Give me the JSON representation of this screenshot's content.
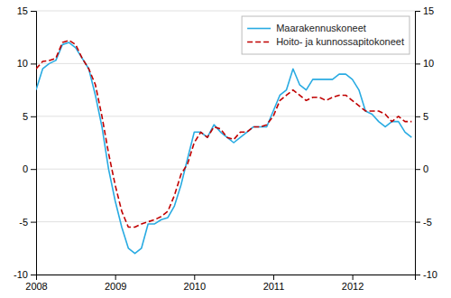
{
  "chart_data": {
    "type": "line",
    "x": [
      2008,
      2008.0833333333333,
      2008.1666666666667,
      2008.25,
      2008.3333333333333,
      2008.4166666666667,
      2008.5,
      2008.5833333333333,
      2008.6666666666667,
      2008.75,
      2008.8333333333333,
      2008.9166666666667,
      2009,
      2009.0833333333333,
      2009.1666666666667,
      2009.25,
      2009.3333333333333,
      2009.4166666666667,
      2009.5,
      2009.5833333333333,
      2009.6666666666667,
      2009.75,
      2009.8333333333333,
      2009.9166666666667,
      2010,
      2010.0833333333333,
      2010.1666666666667,
      2010.25,
      2010.3333333333333,
      2010.4166666666667,
      2010.5,
      2010.5833333333333,
      2010.6666666666667,
      2010.75,
      2010.8333333333333,
      2010.9166666666667,
      2011,
      2011.0833333333333,
      2011.1666666666667,
      2011.25,
      2011.3333333333333,
      2011.4166666666667,
      2011.5,
      2011.5833333333333,
      2011.6666666666667,
      2011.75,
      2011.8333333333333,
      2011.9166666666667,
      2012,
      2012.0833333333333,
      2012.1666666666667,
      2012.25,
      2012.3333333333333,
      2012.4166666666667,
      2012.5,
      2012.5833333333333,
      2012.6666666666667,
      2012.75
    ],
    "series": [
      {
        "name": "Maarakennuskoneet",
        "color": "#29ABE2",
        "line_style": "solid",
        "values": [
          7.5,
          9.5,
          10.0,
          10.3,
          11.8,
          12.0,
          11.5,
          10.5,
          9.5,
          7.0,
          4.0,
          0.0,
          -3.0,
          -5.5,
          -7.5,
          -8.0,
          -7.5,
          -5.2,
          -5.2,
          -4.8,
          -4.6,
          -3.5,
          -1.5,
          1.0,
          3.5,
          3.5,
          3.0,
          4.2,
          3.5,
          3.0,
          2.5,
          3.0,
          3.5,
          4.0,
          4.0,
          4.0,
          5.5,
          7.0,
          7.5,
          9.5,
          8.0,
          7.5,
          8.5,
          8.5,
          8.5,
          8.5,
          9.0,
          9.0,
          8.5,
          7.5,
          5.5,
          5.2,
          4.5,
          4.0,
          4.5,
          4.5,
          3.5,
          3.0
        ]
      },
      {
        "name": "Hoito- ja kunnossapitokoneet",
        "color": "#C00000",
        "line_style": "dashed",
        "values": [
          9.5,
          10.2,
          10.3,
          10.5,
          12.0,
          12.2,
          11.8,
          10.5,
          9.5,
          8.0,
          5.0,
          1.5,
          -1.5,
          -4.0,
          -5.5,
          -5.5,
          -5.2,
          -5.0,
          -4.8,
          -4.5,
          -4.0,
          -2.5,
          -0.5,
          0.5,
          2.5,
          3.5,
          3.0,
          4.0,
          3.8,
          3.0,
          2.8,
          3.5,
          3.5,
          4.0,
          4.0,
          4.2,
          5.0,
          6.5,
          7.0,
          7.5,
          7.0,
          6.5,
          6.8,
          6.8,
          6.5,
          6.8,
          7.0,
          7.0,
          6.5,
          6.0,
          5.5,
          5.5,
          5.5,
          5.2,
          4.5,
          5.0,
          4.5,
          4.5
        ]
      }
    ],
    "xlim": [
      2008,
      2012.7916666666667
    ],
    "xticks": [
      2008,
      2009,
      2010,
      2011,
      2012
    ],
    "ylim": [
      -10,
      15
    ],
    "yticks": [
      -10,
      -5,
      0,
      5,
      10,
      15
    ],
    "y2lim": [
      -10,
      15
    ],
    "y2ticks": [
      -10,
      -5,
      0,
      5,
      10,
      15
    ],
    "grid": true,
    "legend": "upper right"
  }
}
